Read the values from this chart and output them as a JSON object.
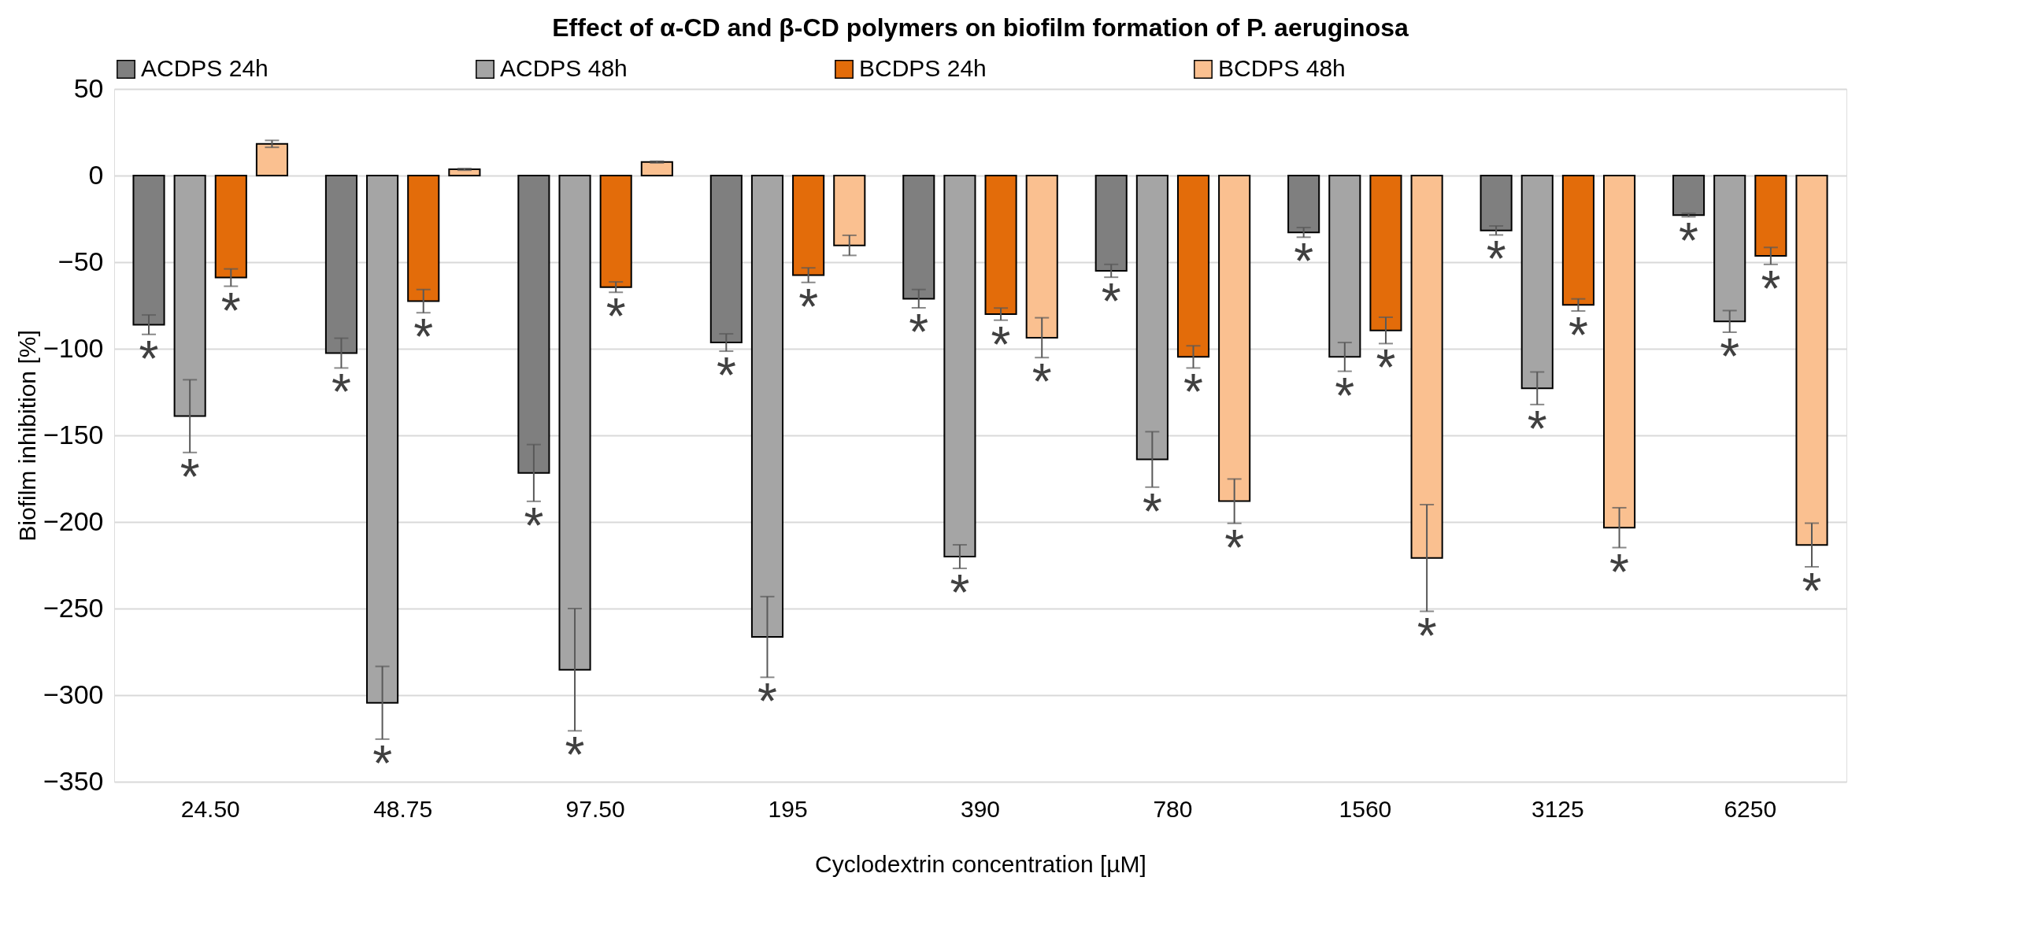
{
  "chart_data": {
    "type": "bar",
    "title": "Effect of α-CD and β-CD polymers on biofilm formation of P. aeruginosa",
    "xlabel": "Cyclodextrin concentration [µM]",
    "ylabel": "Biofilm inhibition [%]",
    "categories": [
      "24.50",
      "48.75",
      "97.50",
      "195",
      "390",
      "780",
      "1560",
      "3125",
      "6250"
    ],
    "series": [
      {
        "name": "ACDPS 24h",
        "color": "#7f7f7f",
        "values": [
          -86.1,
          -102.5,
          -171.7,
          -96.4,
          -71.1,
          -55.0,
          -32.8,
          -31.7,
          -22.8
        ],
        "errors": [
          5.6,
          8.6,
          16.4,
          5.0,
          5.3,
          3.7,
          2.8,
          2.6,
          1.0
        ],
        "value_labels": [
          "*",
          "*",
          "*",
          "*",
          "*",
          "*",
          "*",
          "*",
          "*"
        ]
      },
      {
        "name": "ACDPS 48h",
        "color": "#a5a5a5",
        "values": [
          -138.9,
          -304.4,
          -285.3,
          -266.4,
          -220.0,
          -163.9,
          -104.7,
          -122.8,
          -84.2
        ],
        "errors": [
          21,
          21,
          35.3,
          23.3,
          6.8,
          16,
          8.3,
          9.4,
          6.2
        ],
        "value_labels": [
          "*",
          "*",
          "*",
          "*",
          "*",
          "*",
          "*",
          "*",
          "*"
        ]
      },
      {
        "name": "BCDPS 24h",
        "color": "#e36c0a",
        "values": [
          -58.9,
          -72.5,
          -64.4,
          -57.5,
          -80.0,
          -104.7,
          -89.4,
          -74.7,
          -46.4
        ],
        "errors": [
          5,
          6.7,
          3,
          4.2,
          3.5,
          6.4,
          7.6,
          3.5,
          4.9
        ],
        "value_labels": [
          "*",
          "*",
          "*",
          "*",
          "*",
          "*",
          "*",
          "*",
          "*"
        ]
      },
      {
        "name": "BCDPS 48h",
        "color": "#fac090",
        "values": [
          18.3,
          3.6,
          7.8,
          -40.3,
          -93.6,
          -188.0,
          -220.8,
          -203.3,
          -213.3
        ],
        "errors": [
          2,
          0.5,
          0.5,
          5.8,
          11.5,
          12.8,
          30.8,
          11.5,
          12.6
        ],
        "value_labels": [
          null,
          null,
          null,
          null,
          "*",
          "*",
          "*",
          "*",
          "*"
        ]
      }
    ],
    "ylim": [
      -350,
      50
    ],
    "yticks": [
      -350,
      -300,
      -250,
      -200,
      -150,
      -100,
      -50,
      0,
      50
    ],
    "grid": "y",
    "legend": "top"
  }
}
